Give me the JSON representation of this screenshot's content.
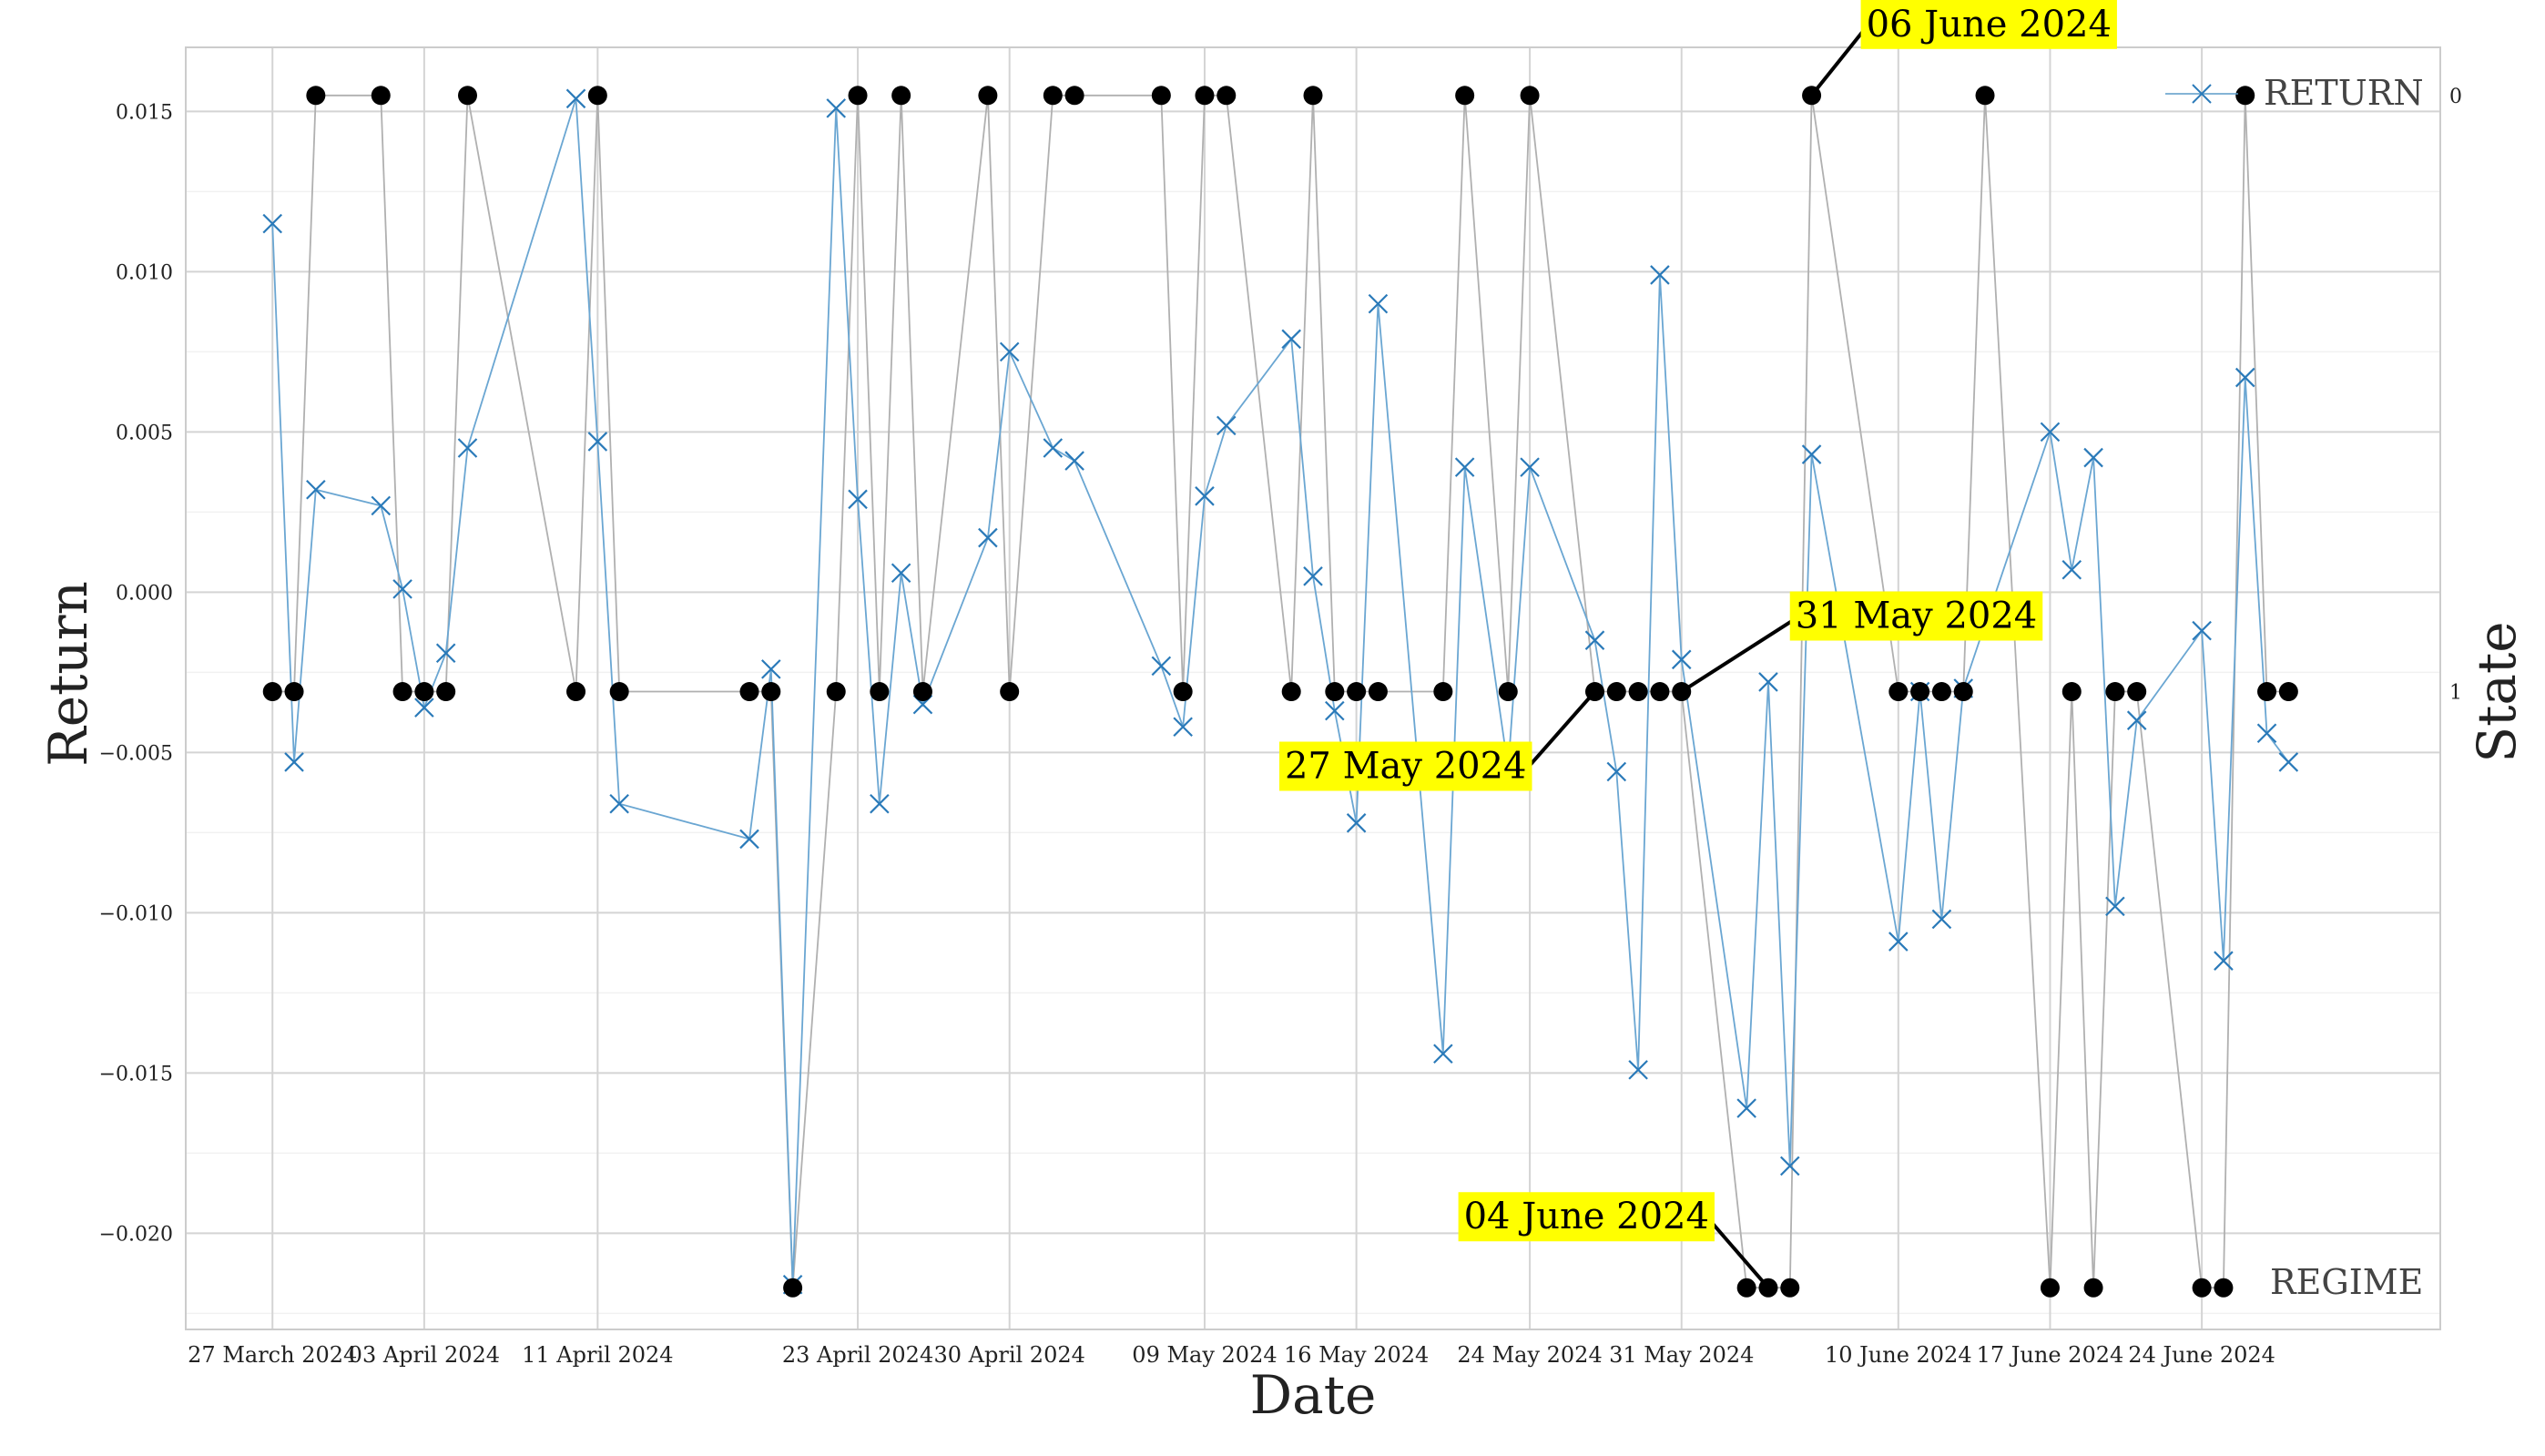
{
  "chart_data": {
    "type": "line",
    "xlabel": "Date",
    "ylabel": "Return",
    "y2label": "State",
    "ylim": [
      -0.023,
      0.017
    ],
    "xlim": [
      "2024-03-23",
      "2024-07-05"
    ],
    "yticks": [
      0.015,
      0.01,
      0.005,
      0.0,
      -0.005,
      -0.01,
      -0.015,
      -0.02
    ],
    "ytick_labels": [
      "0.015",
      "0.010",
      "0.005",
      "0.000",
      "−0.005",
      "−0.010",
      "−0.015",
      "−0.020"
    ],
    "xticks": [
      {
        "date": "2024-03-27",
        "label": "27 March 2024"
      },
      {
        "date": "2024-04-03",
        "label": "03 April 2024"
      },
      {
        "date": "2024-04-11",
        "label": "11 April 2024"
      },
      {
        "date": "2024-04-23",
        "label": "23 April 2024"
      },
      {
        "date": "2024-04-30",
        "label": "30 April 2024"
      },
      {
        "date": "2024-05-09",
        "label": "09 May 2024"
      },
      {
        "date": "2024-05-16",
        "label": "16 May 2024"
      },
      {
        "date": "2024-05-24",
        "label": "24 May 2024"
      },
      {
        "date": "2024-05-31",
        "label": "31 May 2024"
      },
      {
        "date": "2024-06-10",
        "label": "10 June 2024"
      },
      {
        "date": "2024-06-17",
        "label": "17 June 2024"
      },
      {
        "date": "2024-06-24",
        "label": "24 June 2024"
      }
    ],
    "y2ticks": [
      {
        "value": 0,
        "label": "0"
      },
      {
        "value": 1,
        "label": "1"
      }
    ],
    "grid": true,
    "legend_position": "top-right",
    "series": [
      {
        "name": "RETURN",
        "color": "#1f77b4",
        "marker": "x",
        "x": [
          "2024-03-27",
          "2024-03-28",
          "2024-03-29",
          "2024-04-01",
          "2024-04-02",
          "2024-04-03",
          "2024-04-04",
          "2024-04-05",
          "2024-04-10",
          "2024-04-11",
          "2024-04-12",
          "2024-04-18",
          "2024-04-19",
          "2024-04-20",
          "2024-04-22",
          "2024-04-23",
          "2024-04-24",
          "2024-04-25",
          "2024-04-26",
          "2024-04-29",
          "2024-04-30",
          "2024-05-02",
          "2024-05-03",
          "2024-05-07",
          "2024-05-08",
          "2024-05-09",
          "2024-05-10",
          "2024-05-13",
          "2024-05-14",
          "2024-05-15",
          "2024-05-16",
          "2024-05-17",
          "2024-05-20",
          "2024-05-21",
          "2024-05-23",
          "2024-05-24",
          "2024-05-27",
          "2024-05-28",
          "2024-05-29",
          "2024-05-30",
          "2024-05-31",
          "2024-06-03",
          "2024-06-04",
          "2024-06-05",
          "2024-06-06",
          "2024-06-10",
          "2024-06-11",
          "2024-06-12",
          "2024-06-13",
          "2024-06-14",
          "2024-06-17",
          "2024-06-18",
          "2024-06-19",
          "2024-06-20",
          "2024-06-21",
          "2024-06-24",
          "2024-06-25",
          "2024-06-26",
          "2024-06-27",
          "2024-06-28"
        ],
        "values": [
          0.0115,
          -0.0053,
          0.0032,
          0.0027,
          0.0001,
          -0.0036,
          -0.0019,
          0.0045,
          0.0154,
          0.0047,
          -0.0066,
          -0.0077,
          -0.0024,
          -0.0216,
          0.0151,
          0.0029,
          -0.0066,
          0.0006,
          -0.0035,
          0.0017,
          0.0075,
          0.0045,
          0.0041,
          -0.0023,
          -0.0042,
          0.003,
          0.0052,
          0.0079,
          0.0005,
          -0.0037,
          -0.0072,
          0.009,
          -0.0144,
          0.0039,
          -0.0055,
          0.0039,
          -0.0015,
          -0.0056,
          -0.0149,
          0.0099,
          -0.0021,
          -0.0161,
          -0.0028,
          -0.0179,
          0.0043,
          -0.0109,
          -0.0031,
          -0.0102,
          -0.003,
          -0.001,
          0.005,
          0.0007,
          0.0042,
          -0.0098,
          -0.004,
          -0.0012,
          -0.0115,
          0.0067,
          -0.0044,
          -0.0053
        ]
      },
      {
        "name": "REGIME",
        "color": "#000000",
        "line_color": "#b0b0b0",
        "marker": "o",
        "axis": "right",
        "x": [
          "2024-03-27",
          "2024-03-28",
          "2024-03-29",
          "2024-04-01",
          "2024-04-02",
          "2024-04-03",
          "2024-04-04",
          "2024-04-05",
          "2024-04-10",
          "2024-04-11",
          "2024-04-12",
          "2024-04-18",
          "2024-04-19",
          "2024-04-20",
          "2024-04-22",
          "2024-04-23",
          "2024-04-24",
          "2024-04-25",
          "2024-04-26",
          "2024-04-29",
          "2024-04-30",
          "2024-05-02",
          "2024-05-03",
          "2024-05-07",
          "2024-05-08",
          "2024-05-09",
          "2024-05-10",
          "2024-05-13",
          "2024-05-14",
          "2024-05-15",
          "2024-05-16",
          "2024-05-17",
          "2024-05-20",
          "2024-05-21",
          "2024-05-23",
          "2024-05-24",
          "2024-05-27",
          "2024-05-28",
          "2024-05-29",
          "2024-05-30",
          "2024-05-31",
          "2024-06-03",
          "2024-06-04",
          "2024-06-05",
          "2024-06-06",
          "2024-06-10",
          "2024-06-11",
          "2024-06-12",
          "2024-06-13",
          "2024-06-14",
          "2024-06-17",
          "2024-06-18",
          "2024-06-19",
          "2024-06-20",
          "2024-06-21",
          "2024-06-24",
          "2024-06-25",
          "2024-06-26",
          "2024-06-27",
          "2024-06-28"
        ],
        "values": [
          1,
          1,
          0,
          0,
          1,
          1,
          1,
          0,
          1,
          0,
          1,
          1,
          1,
          2,
          1,
          0,
          1,
          0,
          1,
          0,
          1,
          0,
          0,
          0,
          1,
          0,
          0,
          1,
          0,
          1,
          1,
          1,
          1,
          0,
          1,
          0,
          1,
          1,
          1,
          1,
          1,
          2,
          2,
          2,
          0,
          1,
          1,
          1,
          1,
          0,
          2,
          1,
          2,
          1,
          1,
          2,
          2,
          0,
          1,
          1
        ]
      }
    ],
    "annotations": [
      {
        "text": "27 May 2024",
        "date": "2024-05-27",
        "series": "REGIME",
        "color": "#ffff00"
      },
      {
        "text": "31 May 2024",
        "date": "2024-05-31",
        "series": "REGIME",
        "color": "#ffff00"
      },
      {
        "text": "04 June 2024",
        "date": "2024-06-04",
        "series": "REGIME",
        "color": "#ffff00"
      },
      {
        "text": "06 June 2024",
        "date": "2024-06-06",
        "series": "REGIME",
        "color": "#ffff00"
      }
    ]
  }
}
